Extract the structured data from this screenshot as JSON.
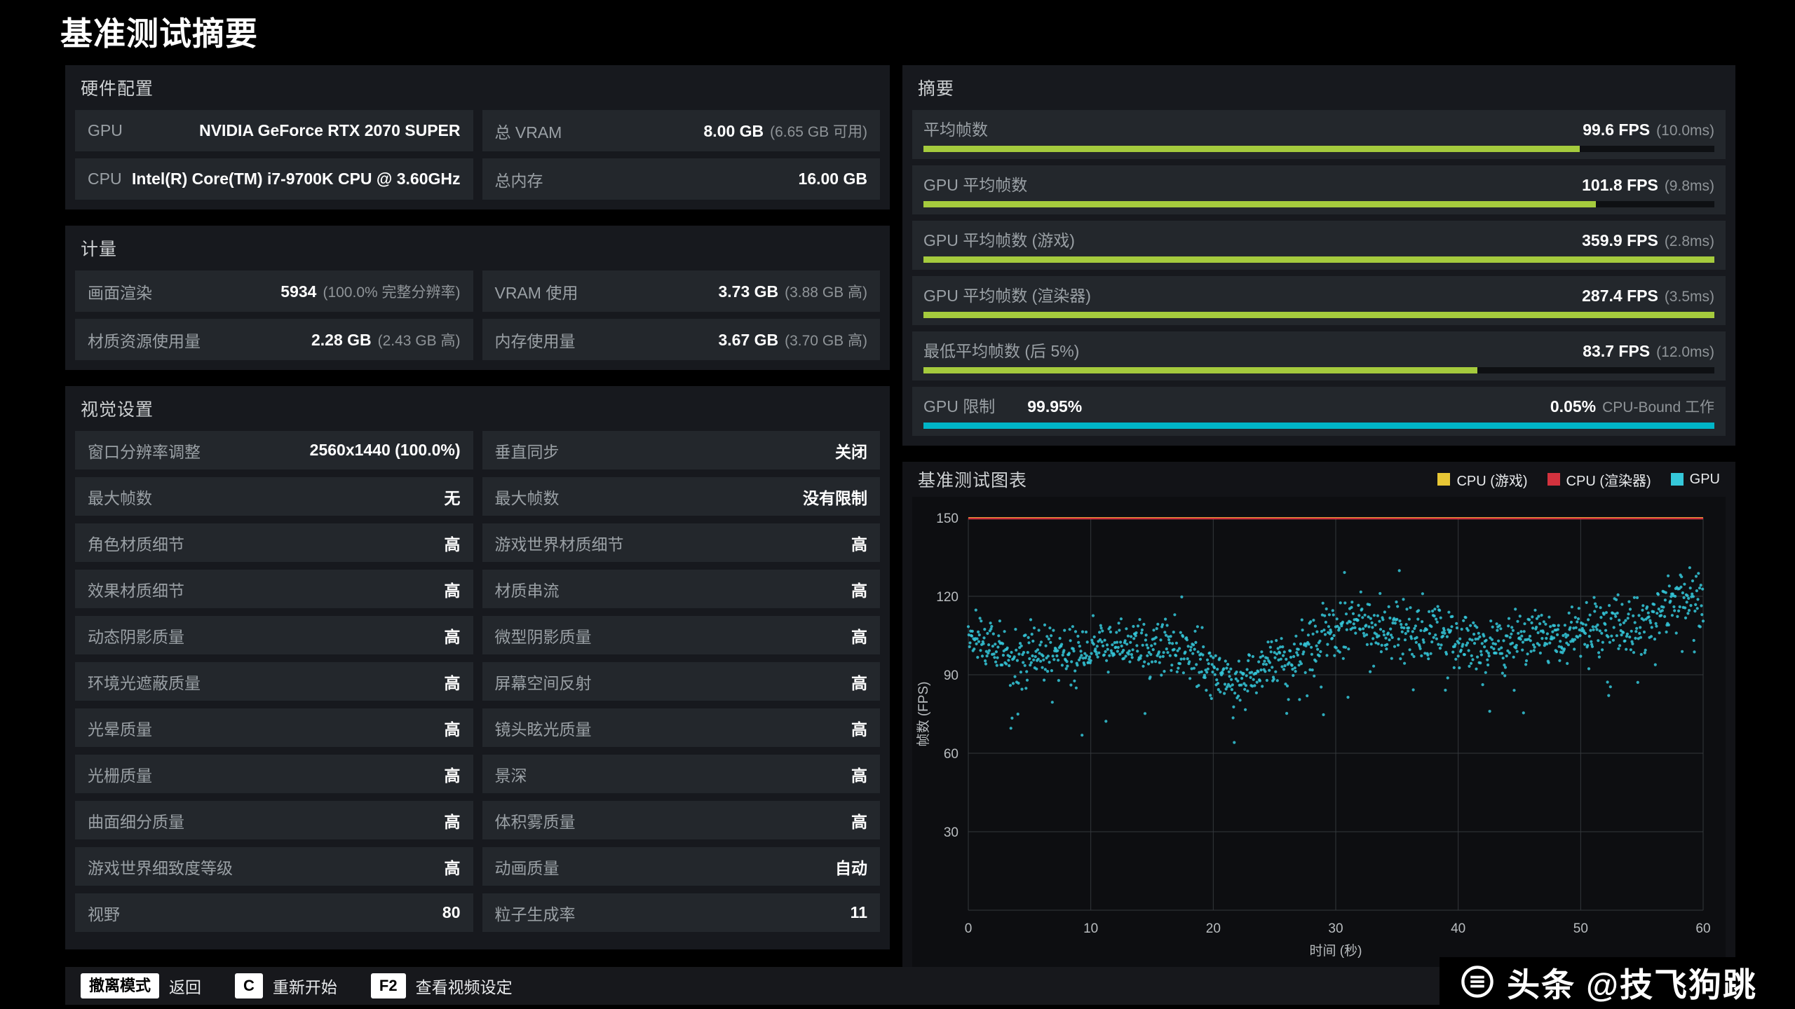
{
  "page": {
    "title": "基准测试摘要"
  },
  "colors": {
    "green": "#a5cb3d",
    "cyan": "#00b5c7",
    "red": "#d3323e",
    "yellow": "#e7c635",
    "gpu_dot": "#35c8da"
  },
  "panels": {
    "hardware": {
      "title": "硬件配置",
      "rows": [
        {
          "cells": [
            {
              "label": "GPU",
              "value": "NVIDIA GeForce RTX 2070 SUPER",
              "sub": ""
            },
            {
              "label": "总 VRAM",
              "value": "8.00 GB",
              "sub": "(6.65 GB 可用)"
            }
          ]
        },
        {
          "cells": [
            {
              "label": "CPU",
              "value": "Intel(R) Core(TM) i7-9700K CPU @ 3.60GHz",
              "sub": ""
            },
            {
              "label": "总内存",
              "value": "16.00 GB",
              "sub": ""
            }
          ]
        }
      ]
    },
    "metrics": {
      "title": "计量",
      "rows": [
        {
          "cells": [
            {
              "label": "画面渲染",
              "value": "5934",
              "sub": "(100.0% 完整分辨率)"
            },
            {
              "label": "VRAM 使用",
              "value": "3.73 GB",
              "sub": "(3.88 GB 高)"
            }
          ]
        },
        {
          "cells": [
            {
              "label": "材质资源使用量",
              "value": "2.28 GB",
              "sub": "(2.43 GB 高)"
            },
            {
              "label": "内存使用量",
              "value": "3.67 GB",
              "sub": "(3.70 GB 高)"
            }
          ]
        }
      ]
    },
    "visual": {
      "title": "视觉设置",
      "rows": [
        {
          "cells": [
            {
              "label": "窗口分辨率调整",
              "value": "2560x1440 (100.0%)"
            },
            {
              "label": "垂直同步",
              "value": "关闭"
            }
          ]
        },
        {
          "cells": [
            {
              "label": "最大帧数",
              "value": "无"
            },
            {
              "label": "最大帧数",
              "value": "没有限制"
            }
          ]
        },
        {
          "cells": [
            {
              "label": "角色材质细节",
              "value": "高"
            },
            {
              "label": "游戏世界材质细节",
              "value": "高"
            }
          ]
        },
        {
          "cells": [
            {
              "label": "效果材质细节",
              "value": "高"
            },
            {
              "label": "材质串流",
              "value": "高"
            }
          ]
        },
        {
          "cells": [
            {
              "label": "动态阴影质量",
              "value": "高"
            },
            {
              "label": "微型阴影质量",
              "value": "高"
            }
          ]
        },
        {
          "cells": [
            {
              "label": "环境光遮蔽质量",
              "value": "高"
            },
            {
              "label": "屏幕空间反射",
              "value": "高"
            }
          ]
        },
        {
          "cells": [
            {
              "label": "光晕质量",
              "value": "高"
            },
            {
              "label": "镜头眩光质量",
              "value": "高"
            }
          ]
        },
        {
          "cells": [
            {
              "label": "光栅质量",
              "value": "高"
            },
            {
              "label": "景深",
              "value": "高"
            }
          ]
        },
        {
          "cells": [
            {
              "label": "曲面细分质量",
              "value": "高"
            },
            {
              "label": "体积雾质量",
              "value": "高"
            }
          ]
        },
        {
          "cells": [
            {
              "label": "游戏世界细致度等级",
              "value": "高"
            },
            {
              "label": "动画质量",
              "value": "自动"
            }
          ]
        },
        {
          "cells": [
            {
              "label": "视野",
              "value": "80"
            },
            {
              "label": "粒子生成率",
              "value": "11"
            }
          ]
        }
      ]
    },
    "summary": {
      "title": "摘要",
      "rows": [
        {
          "label": "平均帧数",
          "left_value": "",
          "value": "99.6 FPS",
          "sub": "(10.0ms)",
          "pct": 83,
          "color": "green"
        },
        {
          "label": "GPU 平均帧数",
          "left_value": "",
          "value": "101.8 FPS",
          "sub": "(9.8ms)",
          "pct": 85,
          "color": "green"
        },
        {
          "label": "GPU 平均帧数 (游戏)",
          "left_value": "",
          "value": "359.9 FPS",
          "sub": "(2.8ms)",
          "pct": 100,
          "color": "green"
        },
        {
          "label": "GPU 平均帧数 (渲染器)",
          "left_value": "",
          "value": "287.4 FPS",
          "sub": "(3.5ms)",
          "pct": 100,
          "color": "green"
        },
        {
          "label": "最低平均帧数 (后 5%)",
          "left_value": "",
          "value": "83.7 FPS",
          "sub": "(12.0ms)",
          "pct": 70,
          "color": "green"
        },
        {
          "label": "GPU 限制",
          "left_value": "99.95%",
          "value": "0.05%",
          "sub": "CPU-Bound 工作",
          "pct": 100,
          "color": "cyan"
        }
      ]
    },
    "chart": {
      "title": "基准测试图表"
    }
  },
  "chart_data": {
    "type": "scatter",
    "title": "基准测试图表",
    "xlabel": "时间 (秒)",
    "ylabel": "帧数 (FPS)",
    "xlim": [
      0,
      60
    ],
    "ylim": [
      0,
      150
    ],
    "xticks": [
      0,
      10,
      20,
      30,
      40,
      50,
      60
    ],
    "yticks": [
      0,
      30,
      60,
      90,
      120,
      150
    ],
    "grid": true,
    "legend_position": "top-right",
    "legend": [
      {
        "label": "CPU (游戏)",
        "color": "#e7c635"
      },
      {
        "label": "CPU (渲染器)",
        "color": "#d3323e"
      },
      {
        "label": "GPU",
        "color": "#35c8da"
      }
    ],
    "series": [
      {
        "name": "CPU (游戏)",
        "type": "line",
        "avg_fps": 359.9,
        "plotted_y": 150,
        "note": "clipped at axis max 150"
      },
      {
        "name": "CPU (渲染器)",
        "type": "line",
        "avg_fps": 287.4,
        "plotted_y": 150,
        "note": "clipped at axis max 150"
      },
      {
        "name": "GPU",
        "type": "scatter",
        "avg_fps": 101.8,
        "x_step": 2,
        "mean_fps": [
          107,
          100,
          96,
          99,
          97,
          100,
          102,
          101,
          103,
          98,
          90,
          88,
          93,
          97,
          100,
          108,
          110,
          108,
          107,
          108,
          103,
          100,
          103,
          105,
          104,
          106,
          108,
          107,
          110,
          122,
          116
        ],
        "spread_fps": 5,
        "points_per_second": 21
      }
    ]
  },
  "footer": {
    "hints": [
      {
        "key": "撤离模式",
        "label": "返回"
      },
      {
        "key": "C",
        "label": "重新开始"
      },
      {
        "key": "F2",
        "label": "查看视频设定"
      }
    ],
    "watermark": "头条 @技飞狗跳"
  }
}
